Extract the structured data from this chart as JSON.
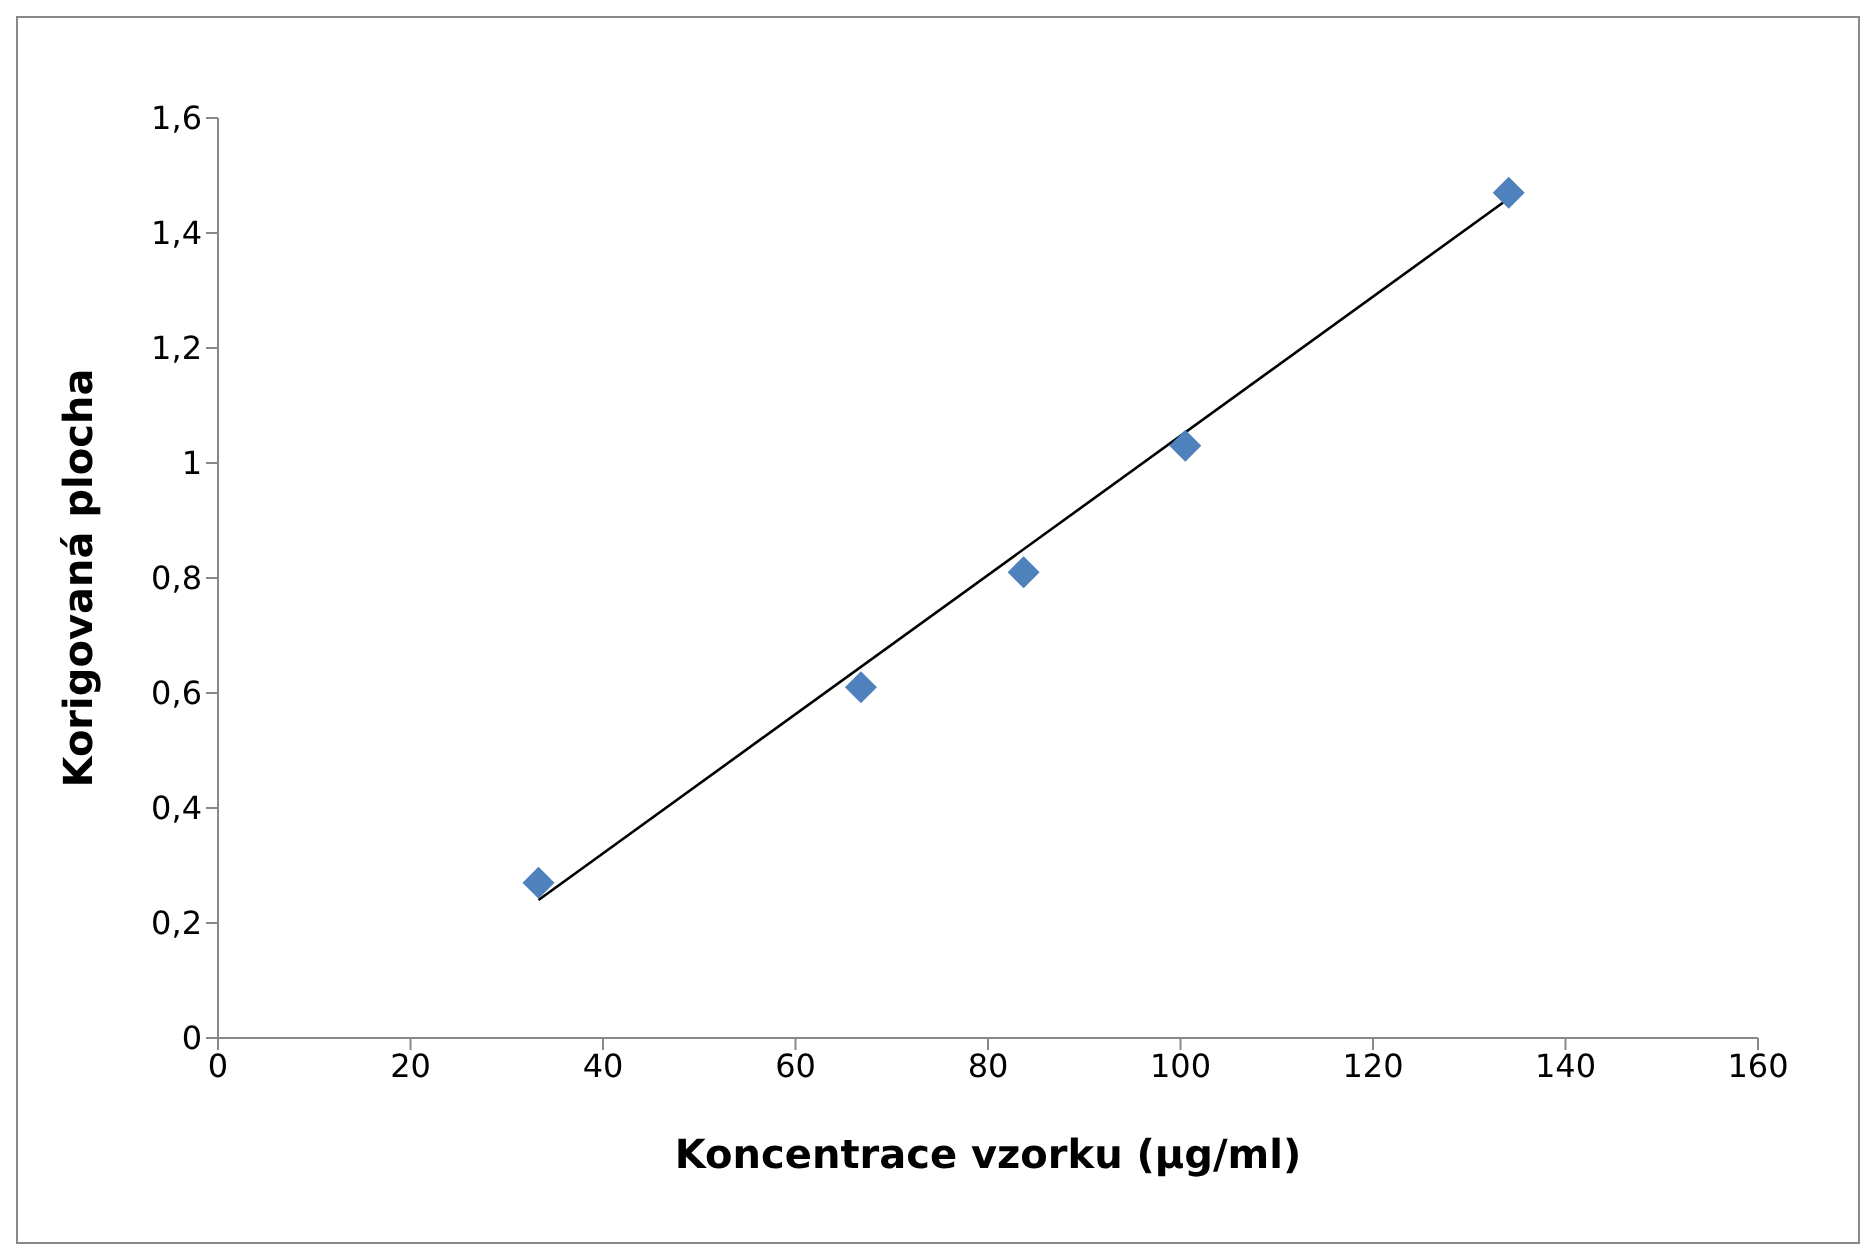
{
  "chart_data": {
    "type": "scatter",
    "xlabel": "Koncentrace vzorku (µg/ml)",
    "ylabel": "Korigovaná plocha",
    "xlim": [
      0,
      160
    ],
    "xticks": [
      0,
      20,
      40,
      60,
      80,
      100,
      120,
      140,
      160
    ],
    "ylim": [
      0,
      1.6
    ],
    "yticks": [
      0,
      {
        "value": 0.2,
        "label": "0,2"
      },
      {
        "value": 0.4,
        "label": "0,4"
      },
      {
        "value": 0.6,
        "label": "0,6"
      },
      {
        "value": 0.8,
        "label": "0,8"
      },
      1,
      {
        "value": 1.2,
        "label": "1,2"
      },
      {
        "value": 1.4,
        "label": "1,4"
      },
      {
        "value": 1.6,
        "label": "1,6"
      }
    ],
    "grid": false,
    "legend": false,
    "marker": "diamond",
    "series": [
      {
        "color": "#4f81bd",
        "x": [
          33.3,
          66.8,
          83.7,
          100.5,
          134.1
        ],
        "values": [
          0.27,
          0.61,
          0.81,
          1.03,
          1.47
        ]
      },
      {
        "type": "line",
        "color": "#000000",
        "marker": "none",
        "x": [
          33.3,
          134.1
        ],
        "values": [
          0.24,
          1.46
        ]
      }
    ]
  }
}
